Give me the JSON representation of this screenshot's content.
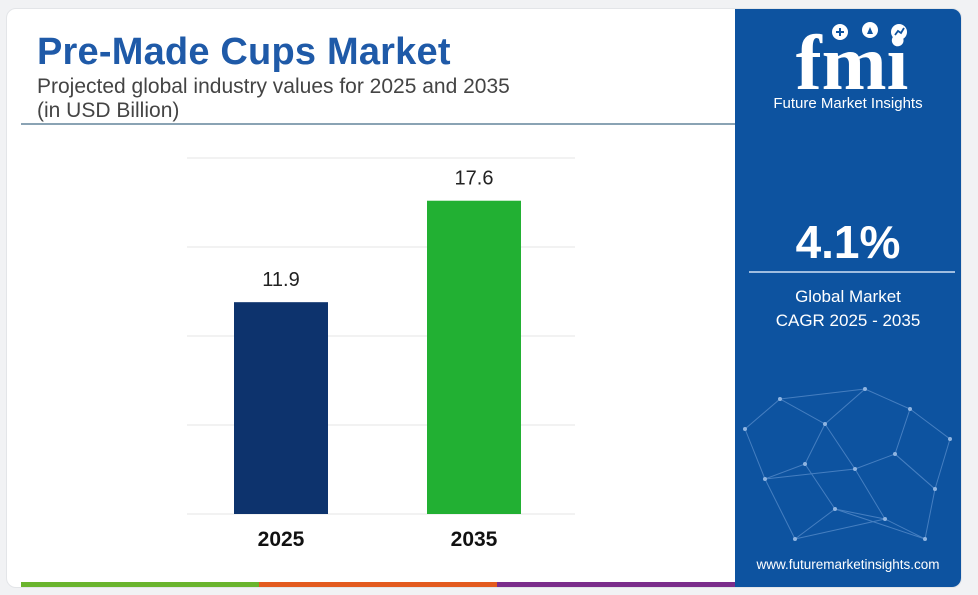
{
  "header": {
    "title": "Pre-Made Cups Market",
    "subtitle_line1": "Projected global industry values for 2025 and 2035",
    "subtitle_line2": "(in USD Billion)"
  },
  "chart_data": {
    "type": "bar",
    "categories": [
      "2025",
      "2035"
    ],
    "values": [
      11.9,
      17.6
    ],
    "value_labels": [
      "11.9",
      "17.6"
    ],
    "bar_colors": [
      "#0d336d",
      "#22b033"
    ],
    "ylim": [
      0,
      20
    ],
    "grid": true
  },
  "panel": {
    "logo_text": "fmi",
    "logo_subtitle": "Future Market Insights",
    "cagr_value": "4.1%",
    "cagr_label_line1": "Global Market",
    "cagr_label_line2": "CAGR 2025 - 2035",
    "website": "www.futuremarketinsights.com",
    "background_color": "#0d53a0"
  },
  "bottom_bar_colors": [
    "#6ab42d",
    "#e35a1e",
    "#7b2d8b"
  ]
}
